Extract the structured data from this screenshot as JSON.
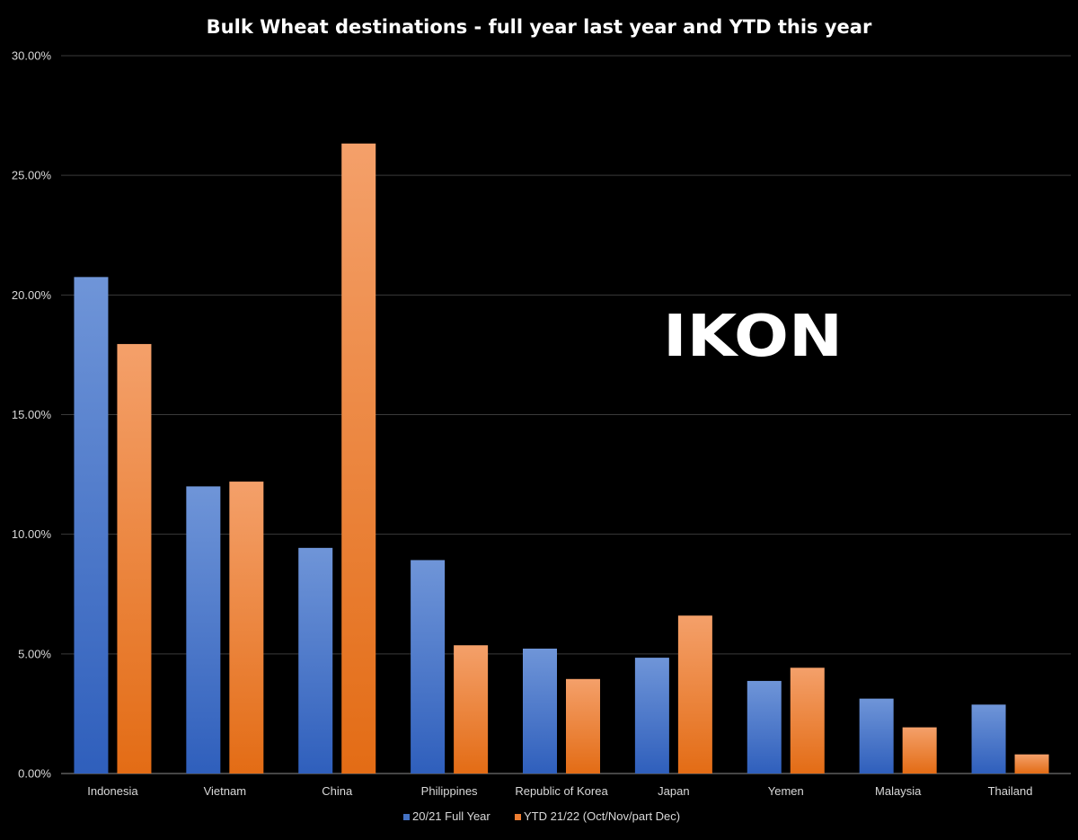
{
  "chart_data": {
    "type": "bar",
    "title": "Bulk Wheat destinations - full year last year and YTD this year",
    "xlabel": "",
    "ylabel": "",
    "categories": [
      "Indonesia",
      "Vietnam",
      "China",
      "Philippines",
      "Republic of Korea",
      "Japan",
      "Yemen",
      "Malaysia",
      "Thailand"
    ],
    "series": [
      {
        "name": "20/21 Full Year",
        "color": "#4472c4",
        "values": [
          20.75,
          12.0,
          9.43,
          8.92,
          5.22,
          4.84,
          3.87,
          3.13,
          2.88
        ]
      },
      {
        "name": "YTD 21/22 (Oct/Nov/part Dec)",
        "color": "#ed7d31",
        "values": [
          17.95,
          12.2,
          26.33,
          5.36,
          3.95,
          6.6,
          4.42,
          1.93,
          0.8
        ]
      }
    ],
    "ylim": [
      0,
      30
    ],
    "yticks": [
      0,
      5,
      10,
      15,
      20,
      25,
      30
    ],
    "ytick_labels": [
      "0.00%",
      "5.00%",
      "10.00%",
      "15.00%",
      "20.00%",
      "25.00%",
      "30.00%"
    ],
    "grid": true,
    "legend": "bottom-center",
    "background": "#000000"
  },
  "logo": {
    "text": "IKON",
    "color": "#ffffff"
  }
}
